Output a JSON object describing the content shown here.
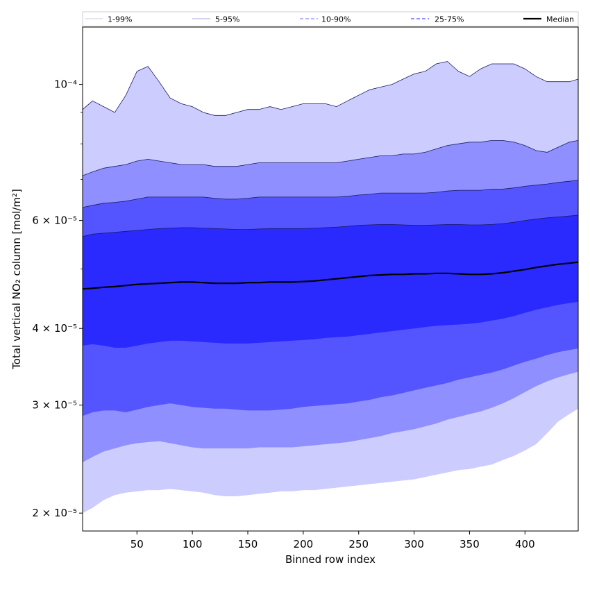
{
  "chart_data": {
    "type": "area",
    "xlabel": "Binned row index",
    "ylabel": "Total vertical NO₂ column [mol/m²]",
    "yscale": "log",
    "xlim": [
      1,
      448
    ],
    "ylim": [
      1.87e-05,
      0.000124
    ],
    "x_ticks": [
      50,
      100,
      150,
      200,
      250,
      300,
      350,
      400
    ],
    "y_ticks": [
      {
        "value": 2e-05,
        "label": "2 × 10⁻⁵"
      },
      {
        "value": 3e-05,
        "label": "3 × 10⁻⁵"
      },
      {
        "value": 4e-05,
        "label": "4 × 10⁻⁵"
      },
      {
        "value": 6e-05,
        "label": "6 × 10⁻⁵"
      },
      {
        "value": 0.0001,
        "label": "10⁻⁴"
      }
    ],
    "x": [
      1,
      10,
      20,
      30,
      40,
      50,
      60,
      70,
      80,
      90,
      100,
      110,
      120,
      130,
      140,
      150,
      160,
      170,
      180,
      190,
      200,
      210,
      220,
      230,
      240,
      250,
      260,
      270,
      280,
      290,
      300,
      310,
      320,
      330,
      340,
      350,
      360,
      370,
      380,
      390,
      400,
      410,
      420,
      430,
      440,
      448
    ],
    "series": [
      {
        "name": "1-99%",
        "color": "#ccccff",
        "lower": [
          2e-05,
          2.04e-05,
          2.1e-05,
          2.14e-05,
          2.16e-05,
          2.17e-05,
          2.18e-05,
          2.18e-05,
          2.19e-05,
          2.18e-05,
          2.17e-05,
          2.16e-05,
          2.14e-05,
          2.13e-05,
          2.13e-05,
          2.14e-05,
          2.15e-05,
          2.16e-05,
          2.17e-05,
          2.17e-05,
          2.18e-05,
          2.18e-05,
          2.19e-05,
          2.2e-05,
          2.21e-05,
          2.22e-05,
          2.23e-05,
          2.24e-05,
          2.25e-05,
          2.26e-05,
          2.27e-05,
          2.29e-05,
          2.31e-05,
          2.33e-05,
          2.35e-05,
          2.36e-05,
          2.38e-05,
          2.4e-05,
          2.44e-05,
          2.48e-05,
          2.53e-05,
          2.59e-05,
          2.7e-05,
          2.82e-05,
          2.9e-05,
          2.96e-05
        ],
        "upper": [
          9.1e-05,
          9.4e-05,
          9.2e-05,
          9e-05,
          9.6e-05,
          0.000105,
          0.000107,
          0.000101,
          9.5e-05,
          9.3e-05,
          9.2e-05,
          9e-05,
          8.9e-05,
          8.9e-05,
          9e-05,
          9.1e-05,
          9.1e-05,
          9.2e-05,
          9.1e-05,
          9.2e-05,
          9.3e-05,
          9.3e-05,
          9.3e-05,
          9.2e-05,
          9.4e-05,
          9.6e-05,
          9.8e-05,
          9.9e-05,
          0.0001,
          0.000102,
          0.000104,
          0.000105,
          0.000108,
          0.000109,
          0.000105,
          0.000103,
          0.000106,
          0.000108,
          0.000108,
          0.000108,
          0.000106,
          0.000103,
          0.000101,
          0.000101,
          0.000101,
          0.000102
        ]
      },
      {
        "name": "5-95%",
        "color": "#8f8fff",
        "lower": [
          2.42e-05,
          2.47e-05,
          2.52e-05,
          2.55e-05,
          2.58e-05,
          2.6e-05,
          2.61e-05,
          2.62e-05,
          2.6e-05,
          2.58e-05,
          2.56e-05,
          2.55e-05,
          2.55e-05,
          2.55e-05,
          2.55e-05,
          2.55e-05,
          2.56e-05,
          2.56e-05,
          2.56e-05,
          2.56e-05,
          2.57e-05,
          2.58e-05,
          2.59e-05,
          2.6e-05,
          2.61e-05,
          2.63e-05,
          2.65e-05,
          2.67e-05,
          2.7e-05,
          2.72e-05,
          2.74e-05,
          2.77e-05,
          2.8e-05,
          2.84e-05,
          2.87e-05,
          2.9e-05,
          2.93e-05,
          2.97e-05,
          3.02e-05,
          3.08e-05,
          3.15e-05,
          3.22e-05,
          3.28e-05,
          3.33e-05,
          3.37e-05,
          3.4e-05
        ],
        "upper": [
          7.1e-05,
          7.2e-05,
          7.3e-05,
          7.35e-05,
          7.4e-05,
          7.5e-05,
          7.55e-05,
          7.5e-05,
          7.45e-05,
          7.4e-05,
          7.4e-05,
          7.4e-05,
          7.35e-05,
          7.35e-05,
          7.35e-05,
          7.4e-05,
          7.45e-05,
          7.45e-05,
          7.45e-05,
          7.45e-05,
          7.45e-05,
          7.45e-05,
          7.45e-05,
          7.45e-05,
          7.5e-05,
          7.55e-05,
          7.6e-05,
          7.65e-05,
          7.65e-05,
          7.7e-05,
          7.7e-05,
          7.75e-05,
          7.85e-05,
          7.95e-05,
          8e-05,
          8.05e-05,
          8.05e-05,
          8.1e-05,
          8.1e-05,
          8.05e-05,
          7.95e-05,
          7.8e-05,
          7.75e-05,
          7.9e-05,
          8.05e-05,
          8.1e-05
        ]
      },
      {
        "name": "10-90%",
        "color": "#5555ff",
        "lower": [
          2.88e-05,
          2.92e-05,
          2.94e-05,
          2.94e-05,
          2.92e-05,
          2.95e-05,
          2.98e-05,
          3e-05,
          3.02e-05,
          3e-05,
          2.98e-05,
          2.97e-05,
          2.96e-05,
          2.96e-05,
          2.95e-05,
          2.94e-05,
          2.94e-05,
          2.94e-05,
          2.95e-05,
          2.96e-05,
          2.98e-05,
          2.99e-05,
          3e-05,
          3.01e-05,
          3.02e-05,
          3.04e-05,
          3.06e-05,
          3.09e-05,
          3.11e-05,
          3.14e-05,
          3.17e-05,
          3.2e-05,
          3.23e-05,
          3.26e-05,
          3.3e-05,
          3.33e-05,
          3.36e-05,
          3.39e-05,
          3.43e-05,
          3.48e-05,
          3.53e-05,
          3.57e-05,
          3.62e-05,
          3.66e-05,
          3.69e-05,
          3.71e-05
        ],
        "upper": [
          6.3e-05,
          6.35e-05,
          6.4e-05,
          6.42e-05,
          6.45e-05,
          6.5e-05,
          6.55e-05,
          6.55e-05,
          6.55e-05,
          6.55e-05,
          6.55e-05,
          6.55e-05,
          6.52e-05,
          6.5e-05,
          6.5e-05,
          6.52e-05,
          6.55e-05,
          6.55e-05,
          6.55e-05,
          6.55e-05,
          6.55e-05,
          6.55e-05,
          6.55e-05,
          6.55e-05,
          6.57e-05,
          6.6e-05,
          6.62e-05,
          6.65e-05,
          6.65e-05,
          6.65e-05,
          6.65e-05,
          6.65e-05,
          6.67e-05,
          6.7e-05,
          6.72e-05,
          6.72e-05,
          6.72e-05,
          6.75e-05,
          6.75e-05,
          6.78e-05,
          6.82e-05,
          6.85e-05,
          6.88e-05,
          6.92e-05,
          6.95e-05,
          6.98e-05
        ]
      },
      {
        "name": "25-75%",
        "color": "#2a2aff",
        "lower": [
          3.75e-05,
          3.77e-05,
          3.75e-05,
          3.72e-05,
          3.72e-05,
          3.75e-05,
          3.78e-05,
          3.8e-05,
          3.82e-05,
          3.82e-05,
          3.81e-05,
          3.8e-05,
          3.79e-05,
          3.78e-05,
          3.78e-05,
          3.78e-05,
          3.79e-05,
          3.8e-05,
          3.81e-05,
          3.82e-05,
          3.83e-05,
          3.84e-05,
          3.86e-05,
          3.87e-05,
          3.88e-05,
          3.9e-05,
          3.92e-05,
          3.94e-05,
          3.96e-05,
          3.98e-05,
          4e-05,
          4.02e-05,
          4.04e-05,
          4.05e-05,
          4.06e-05,
          4.07e-05,
          4.09e-05,
          4.12e-05,
          4.15e-05,
          4.19e-05,
          4.24e-05,
          4.29e-05,
          4.33e-05,
          4.37e-05,
          4.4e-05,
          4.42e-05
        ],
        "upper": [
          5.65e-05,
          5.7e-05,
          5.72e-05,
          5.74e-05,
          5.76e-05,
          5.78e-05,
          5.8e-05,
          5.82e-05,
          5.83e-05,
          5.84e-05,
          5.84e-05,
          5.83e-05,
          5.82e-05,
          5.81e-05,
          5.8e-05,
          5.8e-05,
          5.81e-05,
          5.82e-05,
          5.82e-05,
          5.82e-05,
          5.82e-05,
          5.83e-05,
          5.84e-05,
          5.85e-05,
          5.87e-05,
          5.89e-05,
          5.9e-05,
          5.91e-05,
          5.91e-05,
          5.9e-05,
          5.89e-05,
          5.89e-05,
          5.9e-05,
          5.91e-05,
          5.91e-05,
          5.9e-05,
          5.9e-05,
          5.91e-05,
          5.93e-05,
          5.96e-05,
          6e-05,
          6.03e-05,
          6.06e-05,
          6.08e-05,
          6.1e-05,
          6.12e-05
        ]
      },
      {
        "name": "Median",
        "color": "#000000",
        "values": [
          4.64e-05,
          4.65e-05,
          4.67e-05,
          4.68e-05,
          4.7e-05,
          4.72e-05,
          4.73e-05,
          4.74e-05,
          4.75e-05,
          4.76e-05,
          4.76e-05,
          4.75e-05,
          4.74e-05,
          4.74e-05,
          4.74e-05,
          4.75e-05,
          4.75e-05,
          4.76e-05,
          4.76e-05,
          4.76e-05,
          4.77e-05,
          4.78e-05,
          4.8e-05,
          4.82e-05,
          4.84e-05,
          4.86e-05,
          4.88e-05,
          4.89e-05,
          4.9e-05,
          4.9e-05,
          4.91e-05,
          4.91e-05,
          4.92e-05,
          4.92e-05,
          4.91e-05,
          4.9e-05,
          4.9e-05,
          4.91e-05,
          4.93e-05,
          4.96e-05,
          4.99e-05,
          5.03e-05,
          5.06e-05,
          5.09e-05,
          5.11e-05,
          5.13e-05
        ]
      }
    ],
    "legend": {
      "position": "top",
      "entries": [
        {
          "label": "1-99%",
          "style": "solid-thin",
          "color": "#bbbbdd"
        },
        {
          "label": "5-95%",
          "style": "solid-thin",
          "color": "#8f8fcf"
        },
        {
          "label": "10-90%",
          "style": "dashed",
          "color": "#8c8cff"
        },
        {
          "label": "25-75%",
          "style": "dashed",
          "color": "#5555ff"
        },
        {
          "label": "Median",
          "style": "solid-thick",
          "color": "#000000"
        }
      ]
    },
    "grid": false
  }
}
